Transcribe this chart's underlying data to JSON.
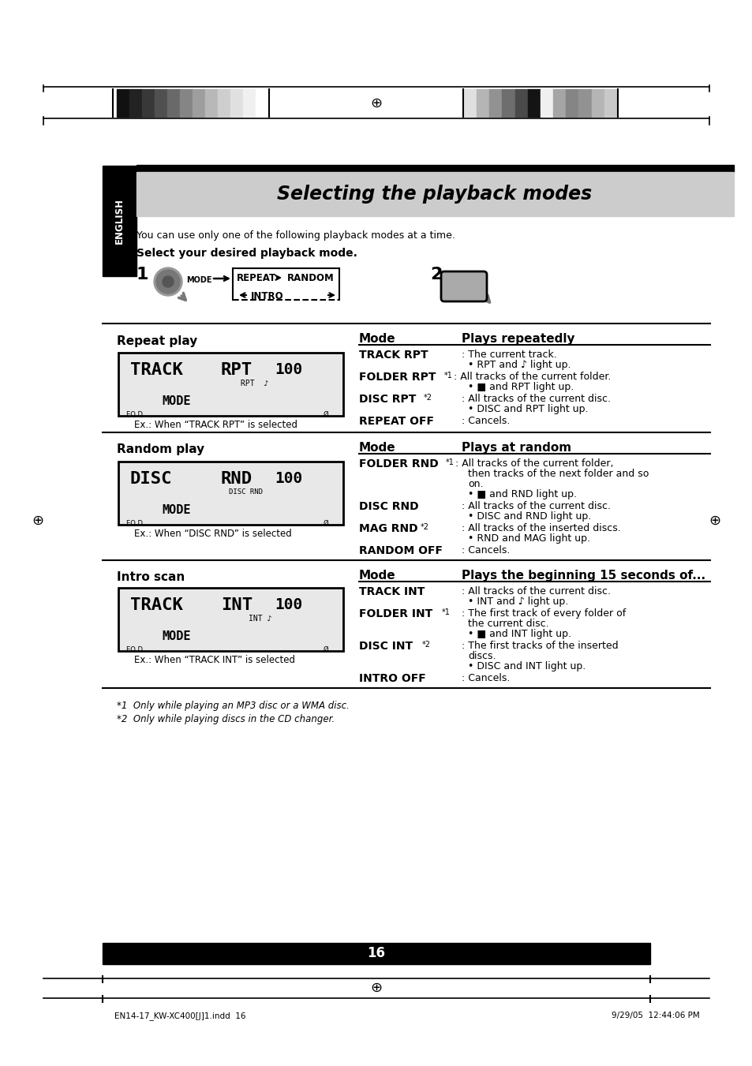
{
  "title": "Selecting the playback modes",
  "bg_color": "#ffffff",
  "header_bg": "#cccccc",
  "section_intro": "You can use only one of the following playback modes at a time.",
  "step_header": "Select your desired playback mode.",
  "repeat_play_label": "Repeat play",
  "random_play_label": "Random play",
  "intro_scan_label": "Intro scan",
  "repeat_ex": "Ex.: When “TRACK RPT” is selected",
  "random_ex": "Ex.: When “DISC RND” is selected",
  "intro_ex": "Ex.: When “TRACK INT” is selected",
  "repeat_mode_header": "Mode",
  "repeat_plays_header": "Plays repeatedly",
  "random_mode_header": "Mode",
  "random_plays_header": "Plays at random",
  "intro_mode_header": "Mode",
  "intro_plays_header": "Plays the beginning 15 seconds of...",
  "footnote1": "*1  Only while playing an MP3 disc or a WMA disc.",
  "footnote2": "*2  Only while playing discs in the CD changer.",
  "page_number": "16",
  "footer_left": "EN14-17_KW-XC400[J]1.indd  16",
  "footer_right": "9/29/05  12:44:06 PM",
  "cross_symbol": "⊕",
  "left_strip_colors": [
    "#111111",
    "#222222",
    "#383838",
    "#505050",
    "#696969",
    "#858585",
    "#9e9e9e",
    "#b8b8b8",
    "#cecece",
    "#e0e0e0",
    "#f0f0f0",
    "#ffffff"
  ],
  "right_strip_colors": [
    "#e0e0e0",
    "#b5b5b5",
    "#929292",
    "#6e6e6e",
    "#4a4a4a",
    "#141414",
    "#f0f0f0",
    "#a5a5a5",
    "#858585",
    "#929292",
    "#b5b5b5",
    "#c8c8c8"
  ]
}
